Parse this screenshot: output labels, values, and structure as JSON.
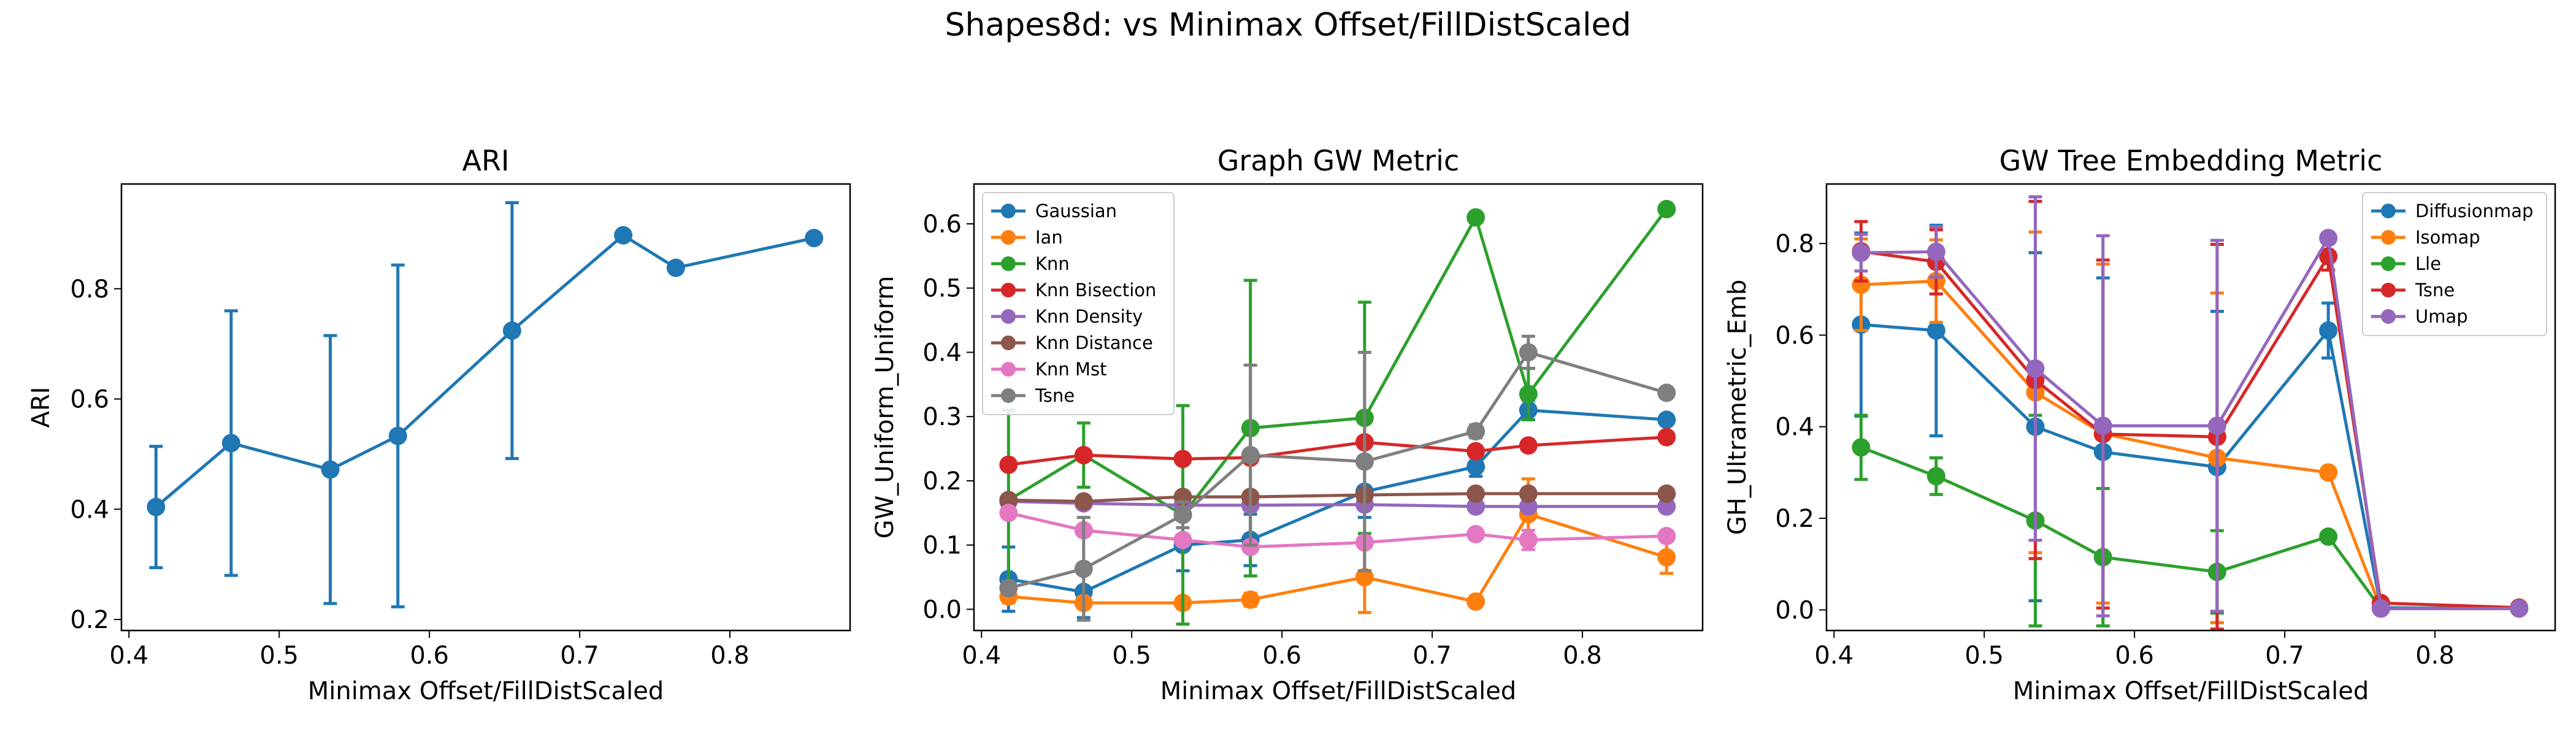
{
  "suptitle": "Shapes8d: vs Minimax Offset/FillDistScaled",
  "chart_data": [
    {
      "type": "line",
      "title": "ARI",
      "xlabel": "Minimax Offset/FillDistScaled",
      "ylabel": "ARI",
      "xlim": [
        0.395,
        0.88
      ],
      "ylim": [
        0.18,
        0.99
      ],
      "xticks": [
        0.4,
        0.5,
        0.6,
        0.7,
        0.8
      ],
      "yticks": [
        0.2,
        0.4,
        0.6,
        0.8
      ],
      "grid": false,
      "legend": null,
      "series": [
        {
          "color": "#1f77b4",
          "x": [
            0.418,
            0.468,
            0.534,
            0.579,
            0.655,
            0.729,
            0.764,
            0.856
          ],
          "y": [
            0.404,
            0.52,
            0.472,
            0.533,
            0.724,
            0.897,
            0.838,
            0.892
          ],
          "err": [
            0.11,
            0.24,
            0.243,
            0.31,
            0.232,
            0,
            0,
            0
          ]
        }
      ]
    },
    {
      "type": "line",
      "title": "Graph GW Metric",
      "xlabel": "Minimax Offset/FillDistScaled",
      "ylabel": "GW_Uniform_Uniform",
      "xlim": [
        0.395,
        0.88
      ],
      "ylim": [
        -0.033,
        0.662
      ],
      "xticks": [
        0.4,
        0.5,
        0.6,
        0.7,
        0.8
      ],
      "yticks": [
        0.0,
        0.1,
        0.2,
        0.3,
        0.4,
        0.5,
        0.6
      ],
      "grid": false,
      "legend": "top-left",
      "series": [
        {
          "name": "Gaussian",
          "color": "#1f77b4",
          "x": [
            0.418,
            0.468,
            0.534,
            0.579,
            0.655,
            0.729,
            0.764,
            0.856
          ],
          "y": [
            0.047,
            0.027,
            0.1,
            0.108,
            0.183,
            0.222,
            0.31,
            0.295
          ],
          "err": [
            0.05,
            0.04,
            0.04,
            0.04,
            0.04,
            0.015,
            0.015,
            0
          ]
        },
        {
          "name": "Ian",
          "color": "#ff7f0e",
          "x": [
            0.418,
            0.468,
            0.534,
            0.579,
            0.655,
            0.729,
            0.764,
            0.856
          ],
          "y": [
            0.02,
            0.01,
            0.01,
            0.015,
            0.05,
            0.012,
            0.148,
            0.081
          ],
          "err": [
            0.01,
            0.005,
            0.005,
            0.01,
            0.055,
            0,
            0.055,
            0.025
          ]
        },
        {
          "name": "Knn",
          "color": "#2ca02c",
          "x": [
            0.418,
            0.468,
            0.534,
            0.579,
            0.655,
            0.729,
            0.764,
            0.856
          ],
          "y": [
            0.17,
            0.24,
            0.147,
            0.282,
            0.298,
            0.61,
            0.335,
            0.623
          ],
          "err": [
            0.14,
            0.05,
            0.17,
            0.23,
            0.18,
            0,
            0.04,
            0
          ]
        },
        {
          "name": "Knn Bisection",
          "color": "#d62728",
          "x": [
            0.418,
            0.468,
            0.534,
            0.579,
            0.655,
            0.729,
            0.764,
            0.856
          ],
          "y": [
            0.225,
            0.24,
            0.234,
            0.236,
            0.26,
            0.246,
            0.255,
            0.268
          ],
          "err": [
            0,
            0,
            0,
            0,
            0,
            0,
            0,
            0
          ]
        },
        {
          "name": "Knn Density",
          "color": "#9467bd",
          "x": [
            0.418,
            0.468,
            0.534,
            0.579,
            0.655,
            0.729,
            0.764,
            0.856
          ],
          "y": [
            0.168,
            0.165,
            0.162,
            0.162,
            0.163,
            0.16,
            0.16,
            0.16
          ],
          "err": [
            0,
            0,
            0,
            0,
            0,
            0,
            0,
            0
          ]
        },
        {
          "name": "Knn Distance",
          "color": "#8c564b",
          "x": [
            0.418,
            0.468,
            0.534,
            0.579,
            0.655,
            0.729,
            0.764,
            0.856
          ],
          "y": [
            0.17,
            0.168,
            0.175,
            0.175,
            0.178,
            0.18,
            0.18,
            0.18
          ],
          "err": [
            0,
            0,
            0,
            0,
            0,
            0,
            0,
            0
          ]
        },
        {
          "name": "Knn Mst",
          "color": "#e377c2",
          "x": [
            0.418,
            0.468,
            0.534,
            0.579,
            0.655,
            0.729,
            0.764,
            0.856
          ],
          "y": [
            0.15,
            0.123,
            0.108,
            0.097,
            0.104,
            0.117,
            0.108,
            0.114
          ],
          "err": [
            0,
            0,
            0,
            0,
            0,
            0,
            0.015,
            0
          ]
        },
        {
          "name": "Tsne",
          "color": "#7f7f7f",
          "x": [
            0.418,
            0.468,
            0.534,
            0.579,
            0.655,
            0.729,
            0.764,
            0.856
          ],
          "y": [
            0.033,
            0.063,
            0.147,
            0.24,
            0.23,
            0.277,
            0.4,
            0.337
          ],
          "err": [
            0.01,
            0.08,
            0.02,
            0.14,
            0.17,
            0.01,
            0.025,
            0
          ]
        }
      ]
    },
    {
      "type": "line",
      "title": "GW Tree Embedding Metric",
      "xlabel": "Minimax Offset/FillDistScaled",
      "ylabel": "GH_Ultrametric_Emb",
      "xlim": [
        0.395,
        0.88
      ],
      "ylim": [
        -0.045,
        0.93
      ],
      "xticks": [
        0.4,
        0.5,
        0.6,
        0.7,
        0.8
      ],
      "yticks": [
        0.0,
        0.2,
        0.4,
        0.6,
        0.8
      ],
      "grid": false,
      "legend": "top-right",
      "series": [
        {
          "name": "Diffusionmap",
          "color": "#1f77b4",
          "x": [
            0.418,
            0.468,
            0.534,
            0.579,
            0.655,
            0.729,
            0.764,
            0.856
          ],
          "y": [
            0.623,
            0.61,
            0.4,
            0.345,
            0.312,
            0.61,
            0.005,
            0.003
          ],
          "err": [
            0.2,
            0.23,
            0.38,
            0.38,
            0.34,
            0.06,
            0,
            0
          ]
        },
        {
          "name": "Isomap",
          "color": "#ff7f0e",
          "x": [
            0.418,
            0.468,
            0.534,
            0.579,
            0.655,
            0.729,
            0.764,
            0.856
          ],
          "y": [
            0.71,
            0.718,
            0.475,
            0.385,
            0.332,
            0.3,
            0.003,
            0.003
          ],
          "err": [
            0.1,
            0.09,
            0.35,
            0.37,
            0.36,
            0,
            0,
            0
          ]
        },
        {
          "name": "Lle",
          "color": "#2ca02c",
          "x": [
            0.418,
            0.468,
            0.534,
            0.579,
            0.655,
            0.729,
            0.764,
            0.856
          ],
          "y": [
            0.355,
            0.292,
            0.195,
            0.115,
            0.083,
            0.16,
            0.003,
            0.003
          ],
          "err": [
            0.07,
            0.04,
            0.23,
            0.15,
            0.09,
            0,
            0,
            0
          ]
        },
        {
          "name": "Tsne",
          "color": "#d62728",
          "x": [
            0.418,
            0.468,
            0.534,
            0.579,
            0.655,
            0.729,
            0.764,
            0.856
          ],
          "y": [
            0.783,
            0.76,
            0.502,
            0.384,
            0.378,
            0.772,
            0.015,
            0.005
          ],
          "err": [
            0.065,
            0.07,
            0.39,
            0.38,
            0.42,
            0.03,
            0,
            0
          ]
        },
        {
          "name": "Umap",
          "color": "#9467bd",
          "x": [
            0.418,
            0.468,
            0.534,
            0.579,
            0.655,
            0.729,
            0.764,
            0.856
          ],
          "y": [
            0.78,
            0.782,
            0.527,
            0.402,
            0.402,
            0.812,
            0.003,
            0.003
          ],
          "err": [
            0.04,
            0.055,
            0.375,
            0.415,
            0.405,
            0,
            0,
            0
          ]
        }
      ]
    }
  ]
}
